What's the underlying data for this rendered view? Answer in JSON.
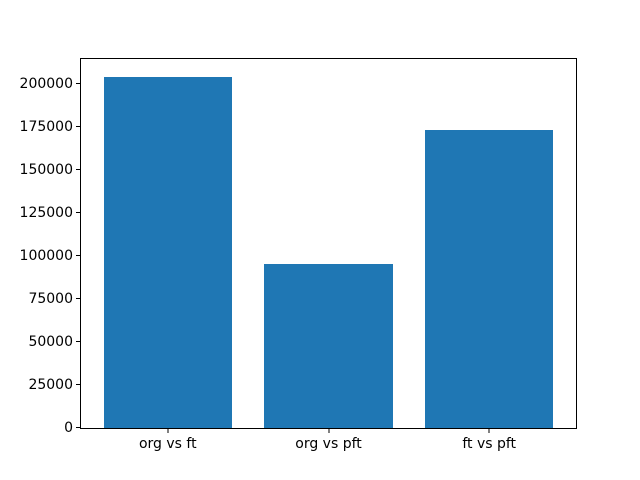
{
  "figure": {
    "background_color": "#ffffff",
    "bar_color": "#1f77b4",
    "spine_color": "#000000",
    "text_color": "#000000"
  },
  "chart_data": {
    "type": "bar",
    "categories": [
      "org vs ft",
      "org vs pft",
      "ft vs pft"
    ],
    "values": [
      204000,
      95000,
      173000
    ],
    "title": "",
    "xlabel": "",
    "ylabel": "",
    "ylim": [
      0,
      214200
    ],
    "yticks": [
      0,
      25000,
      50000,
      75000,
      100000,
      125000,
      150000,
      175000,
      200000
    ],
    "ytick_labels": [
      "0",
      "25000",
      "50000",
      "75000",
      "100000",
      "125000",
      "150000",
      "175000",
      "200000"
    ],
    "bar_width_fraction": 0.8,
    "x_margin_fraction": 0.05,
    "grid": false,
    "legend_position": "none"
  }
}
